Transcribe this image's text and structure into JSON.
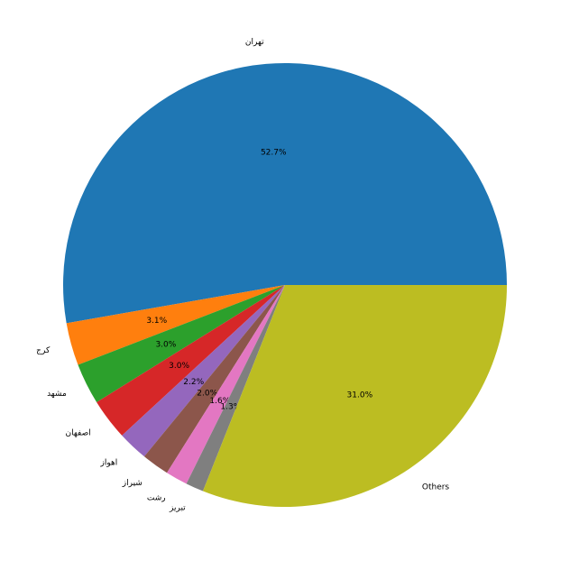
{
  "chart_data": {
    "type": "pie",
    "categories": [
      "تهران",
      "کرج",
      "مشهد",
      "اصفهان",
      "اهواز",
      "شیراز",
      "رشت",
      "تبریز",
      "Others"
    ],
    "values": [
      52.7,
      3.1,
      3.0,
      3.0,
      2.2,
      2.0,
      1.6,
      1.3,
      31.0
    ],
    "value_labels": [
      "52.7%",
      "3.1%",
      "3.0%",
      "3.0%",
      "2.2%",
      "2.0%",
      "1.6%",
      "1.3%",
      "31.0%"
    ],
    "colors": [
      "#1f77b4",
      "#ff7f0e",
      "#2ca02c",
      "#d62728",
      "#9467bd",
      "#8c564b",
      "#e377c2",
      "#7f7f7f",
      "#bcbd22"
    ]
  }
}
